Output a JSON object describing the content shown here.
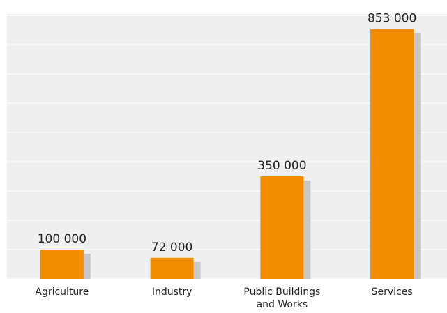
{
  "chart_data": {
    "type": "bar",
    "categories": [
      "Agriculture",
      "Industry",
      "Public Buildings and Works",
      "Services"
    ],
    "values": [
      100000,
      72000,
      350000,
      853000
    ],
    "value_labels": [
      "100 000",
      "72 000",
      "350 000",
      "853 000"
    ],
    "color": "#f28c00",
    "shadow_color": "#c8c8c8",
    "ylim": [
      0,
      900000
    ],
    "yticks": [
      0,
      100000,
      200000,
      300000,
      400000,
      500000,
      600000,
      700000,
      800000,
      900000
    ],
    "grid": true
  }
}
